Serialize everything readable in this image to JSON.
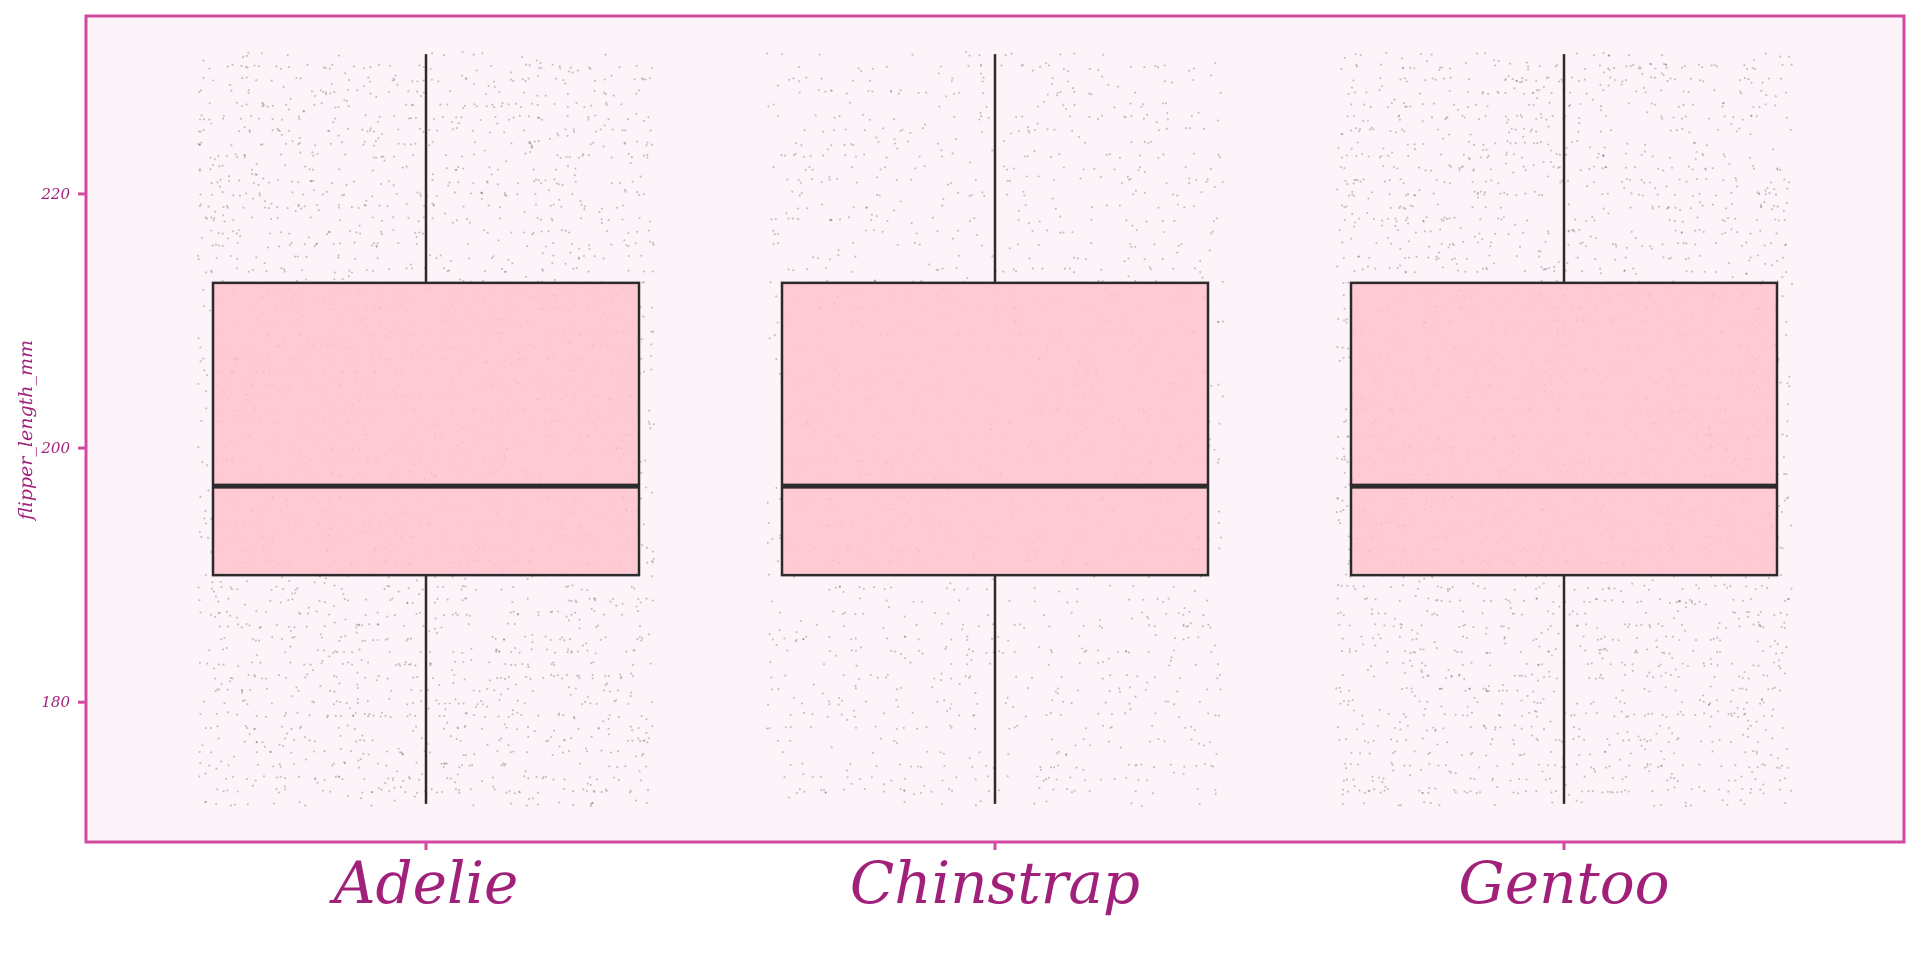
{
  "chart_data": {
    "type": "box",
    "title": "",
    "xlabel": "",
    "ylabel": "flipper_length_mm",
    "ylim": [
      169,
      234
    ],
    "yticks": [
      180,
      200,
      220
    ],
    "grid": false,
    "categories": [
      "Adelie",
      "Chinstrap",
      "Gentoo"
    ],
    "boxes": [
      {
        "category": "Adelie",
        "whisker_low": 172,
        "q1": 190,
        "median": 197,
        "q3": 213,
        "whisker_high": 231
      },
      {
        "category": "Chinstrap",
        "whisker_low": 172,
        "q1": 190,
        "median": 197,
        "q3": 213,
        "whisker_high": 231
      },
      {
        "category": "Gentoo",
        "whisker_low": 172,
        "q1": 190,
        "median": 197,
        "q3": 213,
        "whisker_high": 231
      }
    ],
    "jitter_points": {
      "y_range": [
        172,
        231
      ],
      "density": {
        "Adelie": "high",
        "Chinstrap": "medium",
        "Gentoo": "high"
      }
    },
    "colors": {
      "box_fill": "#ffc2cc",
      "box_stroke": "#2b2b2b",
      "points": "#333333",
      "frame": "#d24aa0",
      "plot_background": "#fcf4f9",
      "text": "#a0207a"
    }
  }
}
